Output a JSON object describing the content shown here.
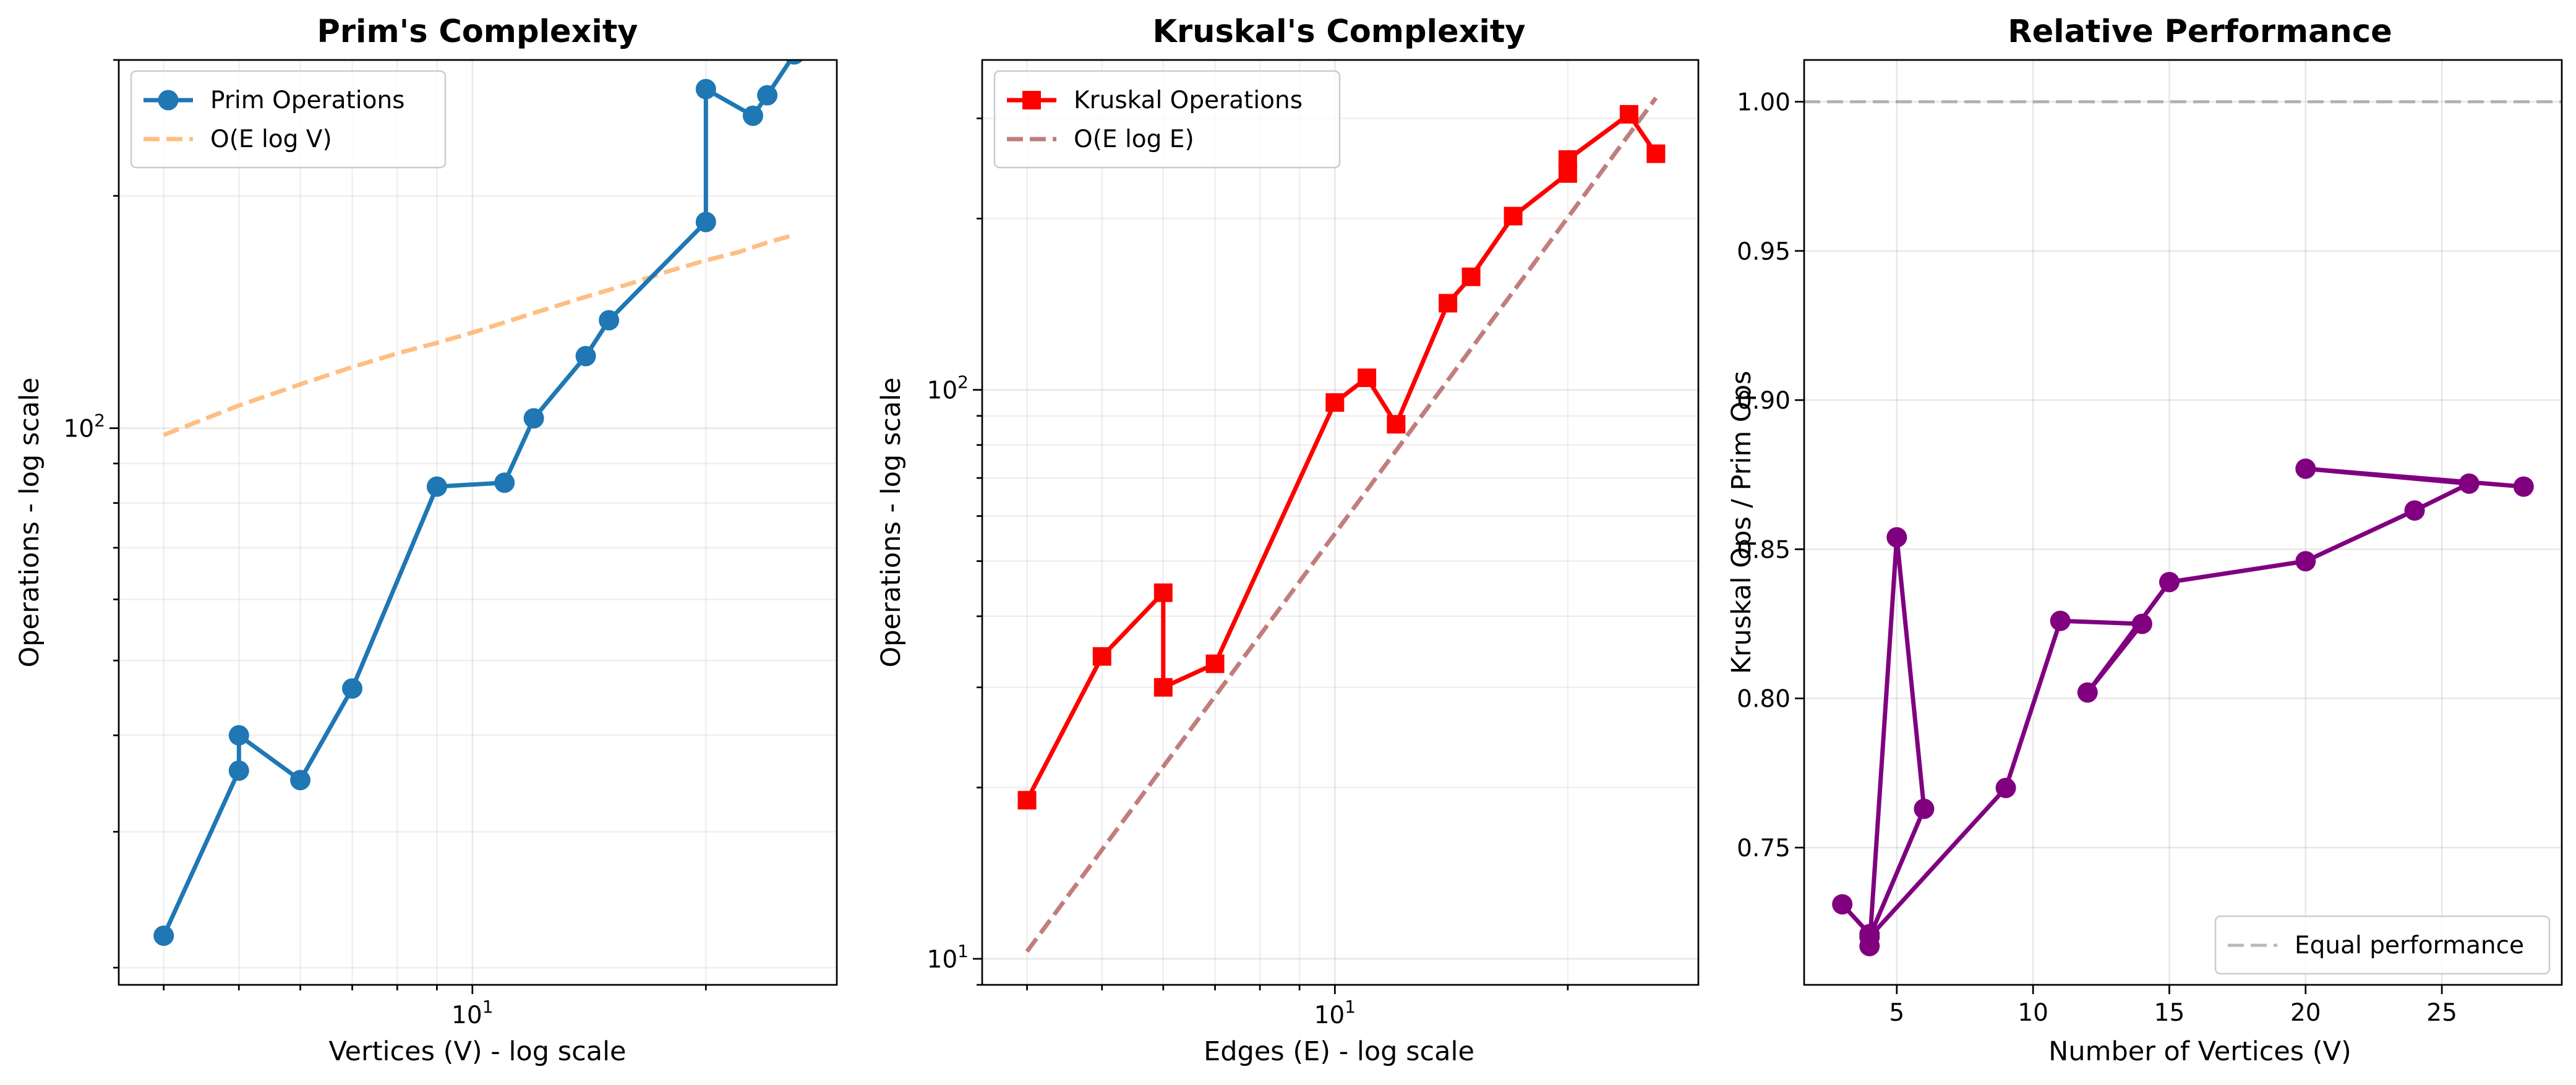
{
  "chart_data": [
    {
      "type": "line",
      "title": "Prim's Complexity",
      "xlabel": "Vertices (V) - log scale",
      "ylabel": "Operations - log scale",
      "xscale": "log",
      "yscale": "log",
      "xlim": [
        3.5,
        29.5
      ],
      "ylim": [
        19,
        300
      ],
      "grid": true,
      "legend_position": "top-left",
      "x_tick_labels": [
        {
          "value": 10,
          "base": "10",
          "exp": "1"
        }
      ],
      "y_tick_labels": [
        {
          "value": 100,
          "base": "10",
          "exp": "2"
        }
      ],
      "series": [
        {
          "name": "Prim Operations",
          "color": "#1f77b4",
          "style": "solid",
          "marker": "circle",
          "x": [
            4,
            5,
            5,
            6,
            7,
            9,
            11,
            12,
            14,
            15,
            20,
            20,
            23,
            24,
            26
          ],
          "y": [
            22,
            36,
            40,
            35,
            46,
            84,
            85,
            103,
            124,
            138,
            185,
            275,
            254,
            270,
            305
          ]
        },
        {
          "name": "O(E log V)",
          "color": "#ffae63",
          "style": "dashed",
          "marker": "none",
          "x": [
            4,
            5,
            6,
            7,
            8,
            9,
            10,
            12,
            14,
            16,
            18,
            20,
            22,
            24,
            26
          ],
          "y": [
            98,
            107,
            114,
            120,
            125,
            129,
            133,
            141,
            148,
            154,
            160,
            165,
            169,
            174,
            178
          ]
        }
      ]
    },
    {
      "type": "line",
      "title": "Kruskal's Complexity",
      "xlabel": "Edges (E) - log scale",
      "ylabel": "Operations - log scale",
      "xscale": "log",
      "yscale": "log",
      "xlim": [
        3.5,
        29.5
      ],
      "ylim": [
        9,
        380
      ],
      "grid": true,
      "legend_position": "top-left",
      "x_tick_labels": [
        {
          "value": 10,
          "base": "10",
          "exp": "1"
        }
      ],
      "y_tick_labels": [
        {
          "value": 10,
          "base": "10",
          "exp": "1"
        },
        {
          "value": 100,
          "base": "10",
          "exp": "2"
        }
      ],
      "series": [
        {
          "name": "Kruskal Operations",
          "color": "#ff0000",
          "style": "solid",
          "marker": "square",
          "x": [
            4,
            5,
            6,
            6,
            7,
            10,
            11,
            12,
            14,
            15,
            17,
            20,
            20,
            24,
            26
          ],
          "y": [
            19,
            34,
            44,
            30,
            33,
            95,
            105,
            87,
            142,
            158,
            202,
            240,
            254,
            305,
            260
          ]
        },
        {
          "name": "O(E log E)",
          "color": "#b35c5c",
          "style": "dashed",
          "marker": "none",
          "x": [
            4,
            26
          ],
          "y": [
            10.3,
            326
          ]
        }
      ]
    },
    {
      "type": "line",
      "title": "Relative Performance",
      "xlabel": "Number of Vertices (V)",
      "ylabel": "Kruskal Ops / Prim Ops",
      "xscale": "linear",
      "yscale": "linear",
      "xlim": [
        1.6,
        29.4
      ],
      "ylim": [
        0.704,
        1.014
      ],
      "grid": true,
      "legend_position": "bottom-right",
      "x_ticks": [
        5,
        10,
        15,
        20,
        25
      ],
      "y_ticks": [
        0.75,
        0.8,
        0.85,
        0.9,
        0.95,
        1.0
      ],
      "y_tick_labels": [
        "0.75",
        "0.80",
        "0.85",
        "0.90",
        "0.95",
        "1.00"
      ],
      "series": [
        {
          "name": "",
          "color": "#800080",
          "style": "solid",
          "marker": "circle",
          "x": [
            3,
            4,
            4,
            5,
            6,
            4,
            9,
            11,
            14,
            12,
            15,
            20,
            24,
            26,
            20,
            28
          ],
          "y": [
            0.731,
            0.721,
            0.717,
            0.854,
            0.763,
            0.72,
            0.77,
            0.826,
            0.825,
            0.802,
            0.839,
            0.846,
            0.863,
            0.872,
            0.877,
            0.871
          ]
        },
        {
          "name": "Equal performance",
          "color": "#808080",
          "style": "dashed",
          "marker": "none",
          "x": [
            1.6,
            29.4
          ],
          "y": [
            1.0,
            1.0
          ]
        }
      ]
    }
  ]
}
